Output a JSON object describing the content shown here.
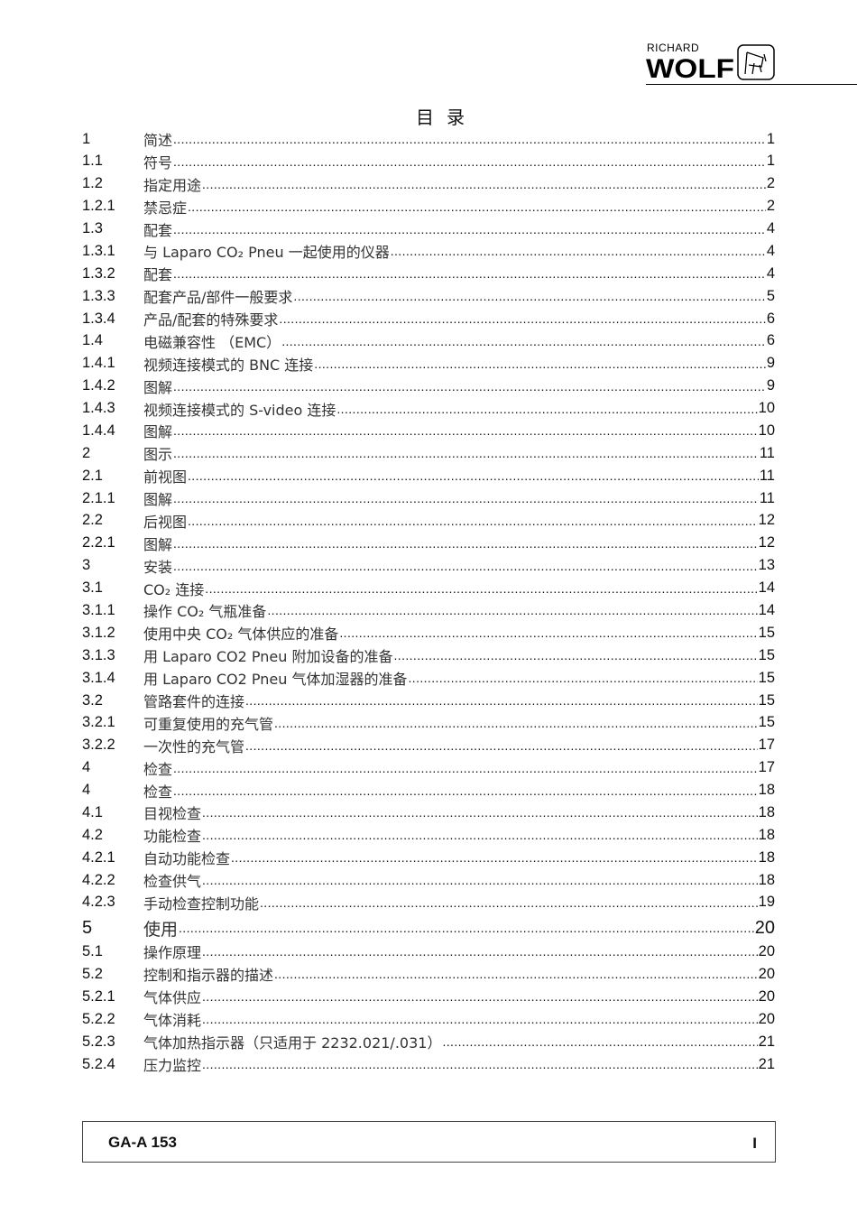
{
  "header": {
    "logo_text_top": "RICHARD",
    "logo_text_main": "WOLF",
    "logo_icon": "knight-on-horse-icon"
  },
  "title": "目录",
  "toc": [
    {
      "num": "1",
      "label": "简述",
      "page": "1"
    },
    {
      "num": "1.1",
      "label": "符号",
      "page": "1"
    },
    {
      "num": "1.2",
      "label": "指定用途",
      "page": "2"
    },
    {
      "num": "1.2.1",
      "label": "禁忌症",
      "page": "2"
    },
    {
      "num": "1.3",
      "label": "配套",
      "page": "4"
    },
    {
      "num": "1.3.1",
      "label": "与 Laparo CO₂ Pneu 一起使用的仪器",
      "page": "4"
    },
    {
      "num": "1.3.2",
      "label": "配套",
      "page": "4"
    },
    {
      "num": "1.3.3",
      "label": "配套产品/部件一般要求",
      "page": "5"
    },
    {
      "num": "1.3.4",
      "label": "产品/配套的特殊要求",
      "page": "6"
    },
    {
      "num": "1.4",
      "label": "电磁兼容性 （EMC）",
      "page": "6"
    },
    {
      "num": "1.4.1",
      "label": "视频连接模式的 BNC 连接",
      "page": "9"
    },
    {
      "num": "1.4.2",
      "label": "图解",
      "page": "9"
    },
    {
      "num": "1.4.3",
      "label": "视频连接模式的 S-video 连接",
      "page": "10"
    },
    {
      "num": "1.4.4",
      "label": "图解",
      "page": "10"
    },
    {
      "num": "2",
      "label": "图示",
      "page": "11"
    },
    {
      "num": "2.1",
      "label": "前视图",
      "page": "11"
    },
    {
      "num": "2.1.1",
      "label": "图解",
      "page": "11"
    },
    {
      "num": "2.2",
      "label": "后视图",
      "page": "12"
    },
    {
      "num": "2.2.1",
      "label": "图解",
      "page": "12"
    },
    {
      "num": "3",
      "label": "安装",
      "page": "13"
    },
    {
      "num": "3.1",
      "label": "CO₂ 连接",
      "page": "14"
    },
    {
      "num": "3.1.1",
      "label": "操作 CO₂ 气瓶准备",
      "page": "14"
    },
    {
      "num": "3.1.2",
      "label": "使用中央 CO₂ 气体供应的准备",
      "page": "15"
    },
    {
      "num": "3.1.3",
      "label": "用 Laparo CO2 Pneu 附加设备的准备",
      "page": "15"
    },
    {
      "num": "3.1.4",
      "label": "用 Laparo CO2 Pneu 气体加湿器的准备",
      "page": "15"
    },
    {
      "num": "3.2",
      "label": "管路套件的连接",
      "page": "15"
    },
    {
      "num": "3.2.1",
      "label": "可重复使用的充气管",
      "page": "15"
    },
    {
      "num": "3.2.2",
      "label": "一次性的充气管",
      "page": "17"
    },
    {
      "num": "4",
      "label": "检查",
      "page": "17"
    },
    {
      "num": "4",
      "label": "检查",
      "page": "18"
    },
    {
      "num": "4.1",
      "label": "目视检查",
      "page": "18"
    },
    {
      "num": "4.2",
      "label": "功能检查",
      "page": "18"
    },
    {
      "num": "4.2.1",
      "label": "自动功能检查",
      "page": "18"
    },
    {
      "num": "4.2.2",
      "label": "检查供气",
      "page": "18"
    },
    {
      "num": "4.2.3",
      "label": "手动检查控制功能",
      "page": "19"
    },
    {
      "num": "5",
      "label": "使用",
      "page": "20"
    },
    {
      "num": "5.1",
      "label": "操作原理",
      "page": "20"
    },
    {
      "num": "5.2",
      "label": "控制和指示器的描述",
      "page": "20"
    },
    {
      "num": "5.2.1",
      "label": "气体供应",
      "page": "20"
    },
    {
      "num": "5.2.2",
      "label": "气体消耗",
      "page": "20"
    },
    {
      "num": "5.2.3",
      "label": "气体加热指示器（只适用于 2232.021/.031）",
      "page": "21"
    },
    {
      "num": "5.2.4",
      "label": "压力监控",
      "page": "21"
    }
  ],
  "footer": {
    "doc_id": "GA-A 153",
    "page": "I"
  }
}
